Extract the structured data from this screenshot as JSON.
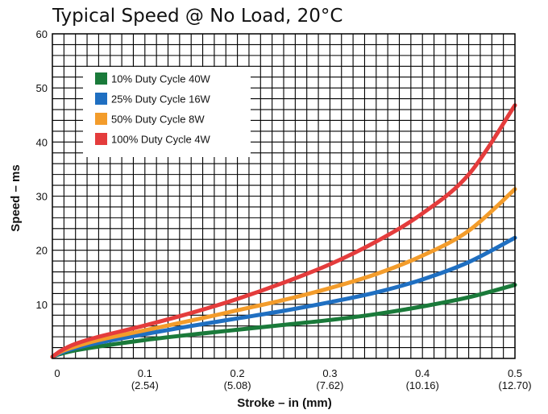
{
  "chart_data": {
    "type": "line",
    "title": "Typical Speed @ No Load, 20°C",
    "xlabel": "Stroke – in (mm)",
    "ylabel": "Speed – ms",
    "xlim": [
      0,
      0.5
    ],
    "ylim": [
      0,
      60
    ],
    "grid": true,
    "legend_position": "top-left",
    "x_ticks": [
      {
        "value": 0,
        "label": "0",
        "sublabel": ""
      },
      {
        "value": 0.1,
        "label": "0.1",
        "sublabel": "(2.54)"
      },
      {
        "value": 0.2,
        "label": "0.2",
        "sublabel": "(5.08)"
      },
      {
        "value": 0.3,
        "label": "0.3",
        "sublabel": "(7.62)"
      },
      {
        "value": 0.4,
        "label": "0.4",
        "sublabel": "(10.16)"
      },
      {
        "value": 0.5,
        "label": "0.5",
        "sublabel": "(12.70)"
      }
    ],
    "y_ticks": [
      {
        "value": 10,
        "label": "10"
      },
      {
        "value": 20,
        "label": "20"
      },
      {
        "value": 30,
        "label": "30"
      },
      {
        "value": 40,
        "label": "40"
      },
      {
        "value": 50,
        "label": "50"
      },
      {
        "value": 60,
        "label": "60"
      }
    ],
    "series": [
      {
        "name": "10% Duty Cycle 40W",
        "color": "#1a7a3a",
        "x": [
          0,
          0.01,
          0.025,
          0.05,
          0.1,
          0.15,
          0.2,
          0.25,
          0.3,
          0.35,
          0.4,
          0.45,
          0.5
        ],
        "y": [
          0.3,
          0.9,
          1.5,
          2.2,
          3.4,
          4.4,
          5.3,
          6.2,
          7.1,
          8.2,
          9.6,
          11.3,
          13.6
        ]
      },
      {
        "name": "25% Duty Cycle 16W",
        "color": "#1f6fc1",
        "x": [
          0,
          0.01,
          0.025,
          0.05,
          0.1,
          0.15,
          0.2,
          0.25,
          0.3,
          0.35,
          0.4,
          0.45,
          0.5
        ],
        "y": [
          0.3,
          1.1,
          1.9,
          2.9,
          4.5,
          6.0,
          7.4,
          8.8,
          10.4,
          12.2,
          14.6,
          17.8,
          22.3
        ]
      },
      {
        "name": "50% Duty Cycle 8W",
        "color": "#f39c2b",
        "x": [
          0,
          0.01,
          0.025,
          0.05,
          0.1,
          0.15,
          0.2,
          0.25,
          0.3,
          0.35,
          0.4,
          0.45,
          0.5
        ],
        "y": [
          0.3,
          1.3,
          2.2,
          3.4,
          5.2,
          7.0,
          8.9,
          10.8,
          13.0,
          15.6,
          19.0,
          23.6,
          31.3
        ]
      },
      {
        "name": "100% Duty Cycle 4W",
        "color": "#e43c3c",
        "x": [
          0,
          0.01,
          0.025,
          0.05,
          0.1,
          0.15,
          0.2,
          0.25,
          0.3,
          0.35,
          0.4,
          0.45,
          0.5
        ],
        "y": [
          0.3,
          1.5,
          2.7,
          4.0,
          6.1,
          8.4,
          11.0,
          14.0,
          17.4,
          21.6,
          26.8,
          34.0,
          46.8
        ]
      }
    ]
  }
}
